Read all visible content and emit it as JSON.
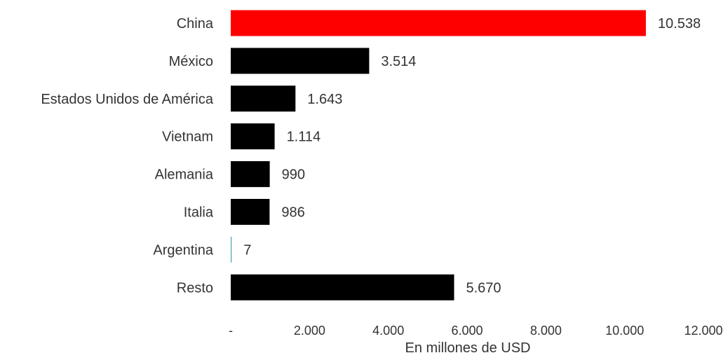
{
  "chart_data": {
    "type": "bar",
    "orientation": "horizontal",
    "categories": [
      "China",
      "México",
      "Estados Unidos de América",
      "Vietnam",
      "Alemania",
      "Italia",
      "Argentina",
      "Resto"
    ],
    "values": [
      10538,
      3514,
      1643,
      1114,
      990,
      986,
      7,
      5670
    ],
    "value_labels": [
      "10.538",
      "3.514",
      "1.643",
      "1.114",
      "990",
      "986",
      "7",
      "5.670"
    ],
    "bar_colors": [
      "#ff0000",
      "#000000",
      "#000000",
      "#000000",
      "#000000",
      "#000000",
      "#4aa3b5",
      "#000000"
    ],
    "xlabel": "En millones de USD",
    "xlim": [
      0,
      12000
    ],
    "x_ticks": [
      0,
      2000,
      4000,
      6000,
      8000,
      10000,
      12000
    ],
    "x_tick_labels": [
      "-",
      "2.000",
      "4.000",
      "6.000",
      "8.000",
      "10.000",
      "12.000"
    ],
    "grid": false,
    "legend": "none"
  }
}
